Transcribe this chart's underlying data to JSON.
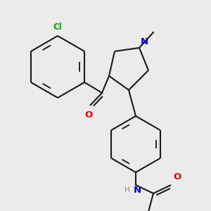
{
  "bg_color": "#ebebeb",
  "bond_color": "#1a1a1a",
  "bond_width": 1.5,
  "atom_colors": {
    "N": "#0000ee",
    "O": "#ee0000",
    "Cl": "#00aa00",
    "H": "#888888"
  },
  "font_size": 8.5,
  "fig_size": [
    3.0,
    3.0
  ],
  "dpi": 100
}
